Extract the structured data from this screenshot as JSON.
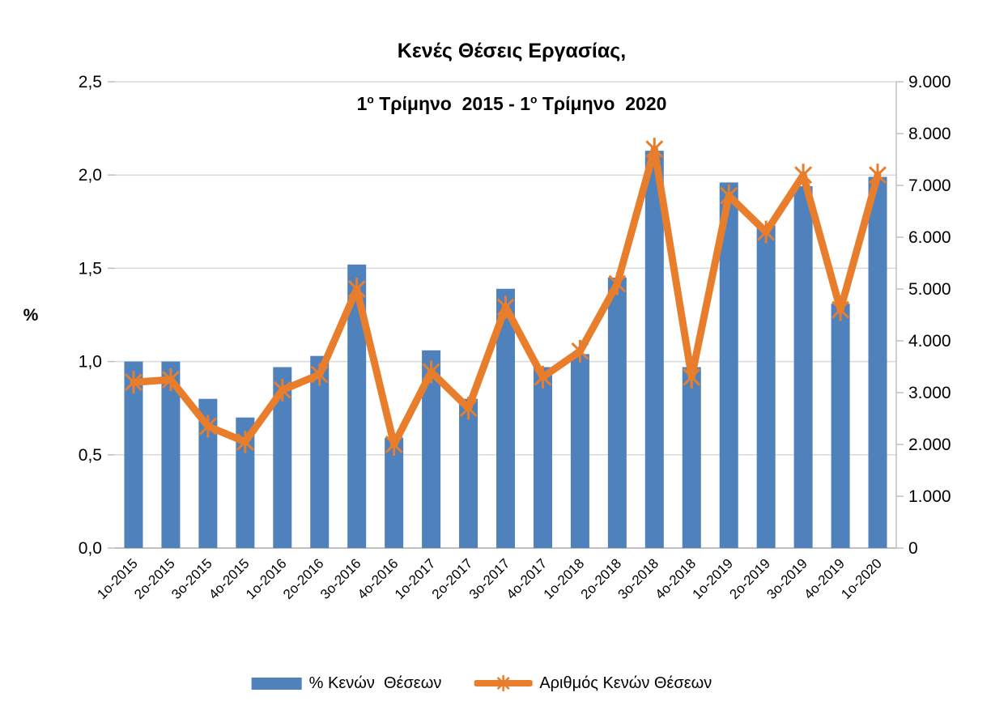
{
  "title": {
    "line1": "Κενές Θέσεις Εργασίας,",
    "line2_parts": {
      "n1": "1",
      "s1": "ο",
      "m": " Τρίμηνο  2015 - ",
      "n2": "1",
      "s2": "ο",
      "e": " Τρίμηνο  2020"
    }
  },
  "colors": {
    "bar": "#4F81BD",
    "line": "#E87D2C",
    "grid": "#D9D9D9",
    "axis": "#BFBFBF",
    "text": "#000000"
  },
  "legend": {
    "items": [
      {
        "swatch": "bar",
        "label": "% Κενών  Θέσεων"
      },
      {
        "swatch": "line",
        "label": "Αριθμός Κενών Θέσεων"
      }
    ]
  },
  "chart_data": {
    "type": "combo",
    "title": "Κενές Θέσεις Εργασίας, 1ο Τρίμηνο 2015 - 1ο Τρίμηνο 2020",
    "categories": [
      "1ο-2015",
      "2ο-2015",
      "3ο-2015",
      "4ο-2015",
      "1ο-2016",
      "2ο-2016",
      "3ο-2016",
      "4ο-2016",
      "1ο-2017",
      "2ο-2017",
      "3ο-2017",
      "4ο-2017",
      "1ο-2018",
      "2ο-2018",
      "3ο-2018",
      "4ο-2018",
      "1ο-2019",
      "2ο-2019",
      "3ο-2019",
      "4ο-2019",
      "1ο-2020"
    ],
    "series": [
      {
        "name": "% Κενών Θέσεων",
        "type": "bar",
        "axis": "left",
        "values": [
          1.0,
          1.0,
          0.8,
          0.7,
          0.97,
          1.03,
          1.52,
          0.59,
          1.06,
          0.8,
          1.39,
          0.97,
          1.04,
          1.45,
          2.13,
          0.97,
          1.96,
          1.73,
          1.94,
          1.31,
          1.99
        ]
      },
      {
        "name": "Αριθμός Κενών Θέσεων",
        "type": "line",
        "axis": "right",
        "values": [
          3200,
          3250,
          2350,
          2050,
          3050,
          3350,
          5000,
          2000,
          3400,
          2700,
          4650,
          3300,
          3800,
          5100,
          7700,
          3300,
          6800,
          6100,
          7200,
          4600,
          7200
        ]
      }
    ],
    "left_axis": {
      "label": "%",
      "min": 0,
      "max": 2.5,
      "ticks": [
        {
          "value": 0.0,
          "label": "0,0"
        },
        {
          "value": 0.5,
          "label": "0,5"
        },
        {
          "value": 1.0,
          "label": "1,0"
        },
        {
          "value": 1.5,
          "label": "1,5"
        },
        {
          "value": 2.0,
          "label": "2,0"
        },
        {
          "value": 2.5,
          "label": "2,5"
        }
      ]
    },
    "right_axis": {
      "min": 0,
      "max": 9000,
      "ticks": [
        {
          "value": 0,
          "label": "0"
        },
        {
          "value": 1000,
          "label": "1.000"
        },
        {
          "value": 2000,
          "label": "2.000"
        },
        {
          "value": 3000,
          "label": "3.000"
        },
        {
          "value": 4000,
          "label": "4.000"
        },
        {
          "value": 5000,
          "label": "5.000"
        },
        {
          "value": 6000,
          "label": "6.000"
        },
        {
          "value": 7000,
          "label": "7.000"
        },
        {
          "value": 8000,
          "label": "8.000"
        },
        {
          "value": 9000,
          "label": "9.000"
        }
      ]
    },
    "grid": true,
    "legend_position": "bottom"
  }
}
